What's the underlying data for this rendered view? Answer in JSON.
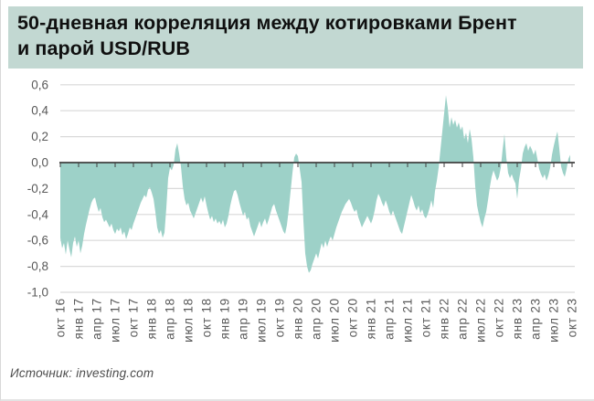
{
  "header": {
    "title_line1": "50-дневная корреляция между котировками Брент",
    "title_line2": "и парой USD/RUB",
    "background": "#c2d8d2",
    "text_color": "#101010"
  },
  "footer": {
    "source_label": "Источник: investing.com"
  },
  "colors": {
    "area_fill": "#9dd1c8",
    "gridline": "#d9d9d9",
    "zero_axis": "#404040",
    "axis_label": "#595959",
    "page_background": "#ffffff"
  },
  "chart_data": {
    "type": "area",
    "title": "50-дневная корреляция между котировками Брент и парой USD/RUB",
    "xlabel": "",
    "ylabel": "",
    "ylim": [
      -1.0,
      0.6
    ],
    "grid": true,
    "legend": "none",
    "y_ticks": [
      {
        "label": "0,6",
        "value": 0.6
      },
      {
        "label": "0,4",
        "value": 0.4
      },
      {
        "label": "0,2",
        "value": 0.2
      },
      {
        "label": "0,0",
        "value": 0.0
      },
      {
        "label": "-0,2",
        "value": -0.2
      },
      {
        "label": "-0,4",
        "value": -0.4
      },
      {
        "label": "-0,6",
        "value": -0.6
      },
      {
        "label": "-0,8",
        "value": -0.8
      },
      {
        "label": "-1,0",
        "value": -1.0
      }
    ],
    "x_ticks": [
      "окт 16",
      "янв 17",
      "апр 17",
      "июл 17",
      "окт 17",
      "янв 18",
      "апр 18",
      "июл 18",
      "окт 18",
      "янв 19",
      "апр 19",
      "июл 19",
      "окт 19",
      "янв 20",
      "апр 20",
      "июл 20",
      "окт 20",
      "янв 21",
      "апр 21",
      "июл 21",
      "окт 21",
      "янв 22",
      "апр 22",
      "июл 22",
      "окт 22",
      "янв 23",
      "апр 23",
      "июл 23",
      "окт 23"
    ],
    "series": [
      {
        "name": "50-дневная корреляция Брент / USD-RUB",
        "values": [
          -0.58,
          -0.66,
          -0.62,
          -0.71,
          -0.6,
          -0.67,
          -0.73,
          -0.62,
          -0.57,
          -0.65,
          -0.6,
          -0.7,
          -0.64,
          -0.55,
          -0.48,
          -0.42,
          -0.36,
          -0.31,
          -0.28,
          -0.27,
          -0.33,
          -0.38,
          -0.35,
          -0.42,
          -0.46,
          -0.44,
          -0.47,
          -0.5,
          -0.47,
          -0.52,
          -0.55,
          -0.51,
          -0.53,
          -0.5,
          -0.56,
          -0.53,
          -0.59,
          -0.55,
          -0.5,
          -0.52,
          -0.47,
          -0.43,
          -0.39,
          -0.35,
          -0.31,
          -0.28,
          -0.25,
          -0.27,
          -0.21,
          -0.19,
          -0.23,
          -0.28,
          -0.38,
          -0.5,
          -0.55,
          -0.52,
          -0.58,
          -0.54,
          -0.35,
          -0.12,
          -0.04,
          -0.06,
          -0.02,
          0.1,
          0.15,
          0.07,
          -0.03,
          -0.18,
          -0.28,
          -0.33,
          -0.31,
          -0.37,
          -0.4,
          -0.43,
          -0.39,
          -0.35,
          -0.31,
          -0.27,
          -0.31,
          -0.26,
          -0.33,
          -0.39,
          -0.44,
          -0.41,
          -0.46,
          -0.43,
          -0.47,
          -0.45,
          -0.48,
          -0.44,
          -0.5,
          -0.47,
          -0.41,
          -0.33,
          -0.27,
          -0.22,
          -0.21,
          -0.25,
          -0.31,
          -0.36,
          -0.41,
          -0.38,
          -0.44,
          -0.42,
          -0.49,
          -0.53,
          -0.57,
          -0.53,
          -0.49,
          -0.45,
          -0.5,
          -0.46,
          -0.43,
          -0.48,
          -0.44,
          -0.39,
          -0.34,
          -0.32,
          -0.37,
          -0.41,
          -0.45,
          -0.49,
          -0.53,
          -0.55,
          -0.48,
          -0.36,
          -0.22,
          -0.08,
          0.04,
          0.07,
          0.05,
          -0.05,
          -0.15,
          -0.45,
          -0.7,
          -0.8,
          -0.85,
          -0.83,
          -0.78,
          -0.74,
          -0.7,
          -0.74,
          -0.68,
          -0.62,
          -0.66,
          -0.6,
          -0.65,
          -0.6,
          -0.57,
          -0.6,
          -0.55,
          -0.5,
          -0.46,
          -0.42,
          -0.38,
          -0.35,
          -0.32,
          -0.3,
          -0.28,
          -0.31,
          -0.35,
          -0.38,
          -0.36,
          -0.42,
          -0.46,
          -0.5,
          -0.47,
          -0.44,
          -0.41,
          -0.44,
          -0.47,
          -0.43,
          -0.37,
          -0.29,
          -0.24,
          -0.27,
          -0.31,
          -0.34,
          -0.29,
          -0.33,
          -0.38,
          -0.41,
          -0.37,
          -0.41,
          -0.45,
          -0.49,
          -0.53,
          -0.55,
          -0.49,
          -0.43,
          -0.37,
          -0.31,
          -0.25,
          -0.29,
          -0.34,
          -0.37,
          -0.33,
          -0.39,
          -0.36,
          -0.41,
          -0.43,
          -0.4,
          -0.35,
          -0.29,
          -0.35,
          -0.22,
          -0.14,
          -0.04,
          0.1,
          0.24,
          0.38,
          0.52,
          0.42,
          0.27,
          0.35,
          0.29,
          0.33,
          0.27,
          0.31,
          0.25,
          0.28,
          0.18,
          0.23,
          0.15,
          0.26,
          0.18,
          0.04,
          -0.18,
          -0.33,
          -0.4,
          -0.46,
          -0.5,
          -0.43,
          -0.38,
          -0.29,
          -0.19,
          -0.11,
          -0.06,
          -0.1,
          -0.14,
          -0.11,
          -0.04,
          0.1,
          0.22,
          0.04,
          -0.08,
          -0.12,
          -0.09,
          -0.13,
          -0.16,
          -0.28,
          -0.13,
          -0.05,
          0.07,
          0.12,
          0.15,
          0.09,
          0.13,
          0.1,
          0.06,
          0.1,
          0.03,
          -0.05,
          -0.09,
          -0.12,
          -0.09,
          -0.14,
          -0.1,
          -0.04,
          0.06,
          0.13,
          0.19,
          0.24,
          0.11,
          -0.03,
          -0.08,
          -0.11,
          -0.05,
          0.03,
          0.06
        ]
      }
    ],
    "annotations": []
  }
}
